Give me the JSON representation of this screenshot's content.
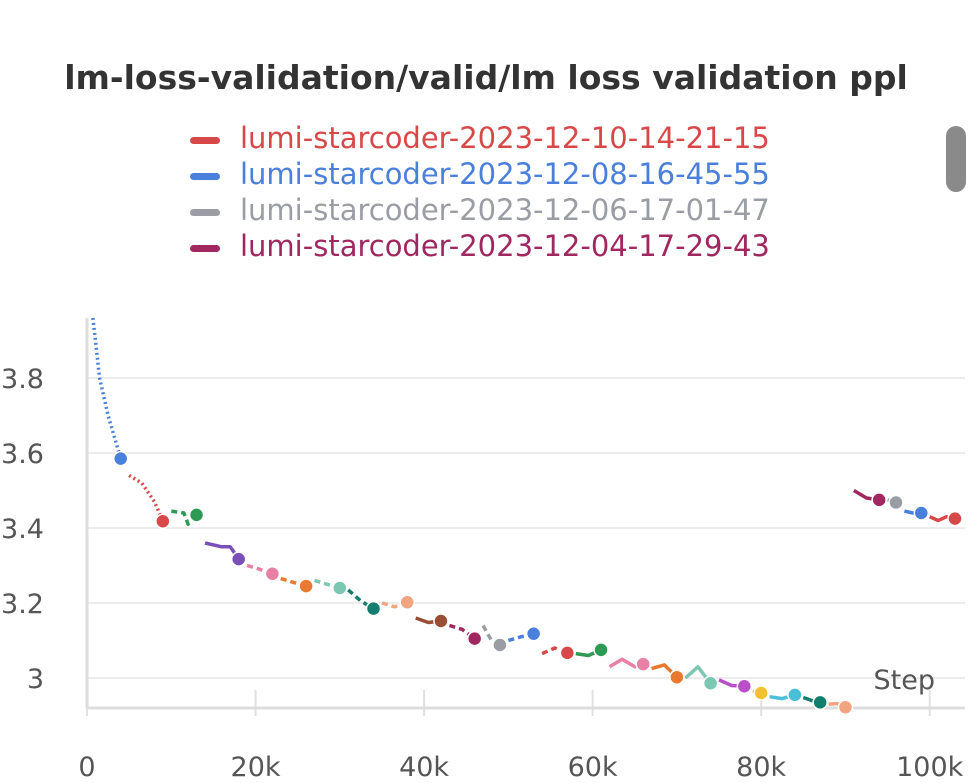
{
  "chart_data": {
    "type": "line",
    "title": "lm-loss-validation/valid/lm loss validation ppl",
    "xlabel": "Step",
    "ylabel": "",
    "xlim": [
      0,
      103000
    ],
    "ylim": [
      2.92,
      3.96
    ],
    "x_ticks": [
      {
        "value": 0,
        "label": "0"
      },
      {
        "value": 20000,
        "label": "20k"
      },
      {
        "value": 40000,
        "label": "40k"
      },
      {
        "value": 60000,
        "label": "60k"
      },
      {
        "value": 80000,
        "label": "80k"
      },
      {
        "value": 100000,
        "label": "100k"
      }
    ],
    "y_ticks": [
      {
        "value": 3.8,
        "label": "3.8"
      },
      {
        "value": 3.6,
        "label": "3.6"
      },
      {
        "value": 3.4,
        "label": "3.4"
      },
      {
        "value": 3.2,
        "label": "3.2"
      },
      {
        "value": 3.0,
        "label": "3"
      }
    ],
    "grid": true,
    "legend_position": "top",
    "legend": [
      {
        "name": "lumi-starcoder-2023-12-10-14-21-15",
        "color": "#d94848"
      },
      {
        "name": "lumi-starcoder-2023-12-08-16-45-55",
        "color": "#4a80dc"
      },
      {
        "name": "lumi-starcoder-2023-12-06-17-01-47",
        "color": "#9a9da3"
      },
      {
        "name": "lumi-starcoder-2023-12-04-17-29-43",
        "color": "#a0275f"
      }
    ],
    "series": [
      {
        "color": "#4a80dc",
        "dash": "2,3",
        "x": [
          700,
          1500,
          2500,
          4000
        ],
        "y": [
          3.96,
          3.8,
          3.7,
          3.585
        ]
      },
      {
        "color": "#d94848",
        "dash": "2,3",
        "x": [
          5000,
          6500,
          8000,
          9000
        ],
        "y": [
          3.54,
          3.52,
          3.47,
          3.42
        ]
      },
      {
        "color": "#2e9a55",
        "dash": "6,4",
        "x": [
          10000,
          11500,
          12000,
          13000
        ],
        "y": [
          3.445,
          3.44,
          3.41,
          3.435
        ]
      },
      {
        "color": "#7b4fb8",
        "dash": "",
        "x": [
          14000,
          16000,
          17000,
          18000
        ],
        "y": [
          3.36,
          3.35,
          3.35,
          3.317
        ]
      },
      {
        "color": "#e87fa4",
        "dash": "6,4",
        "x": [
          19000,
          20500,
          22000
        ],
        "y": [
          3.3,
          3.29,
          3.278
        ]
      },
      {
        "color": "#e8792e",
        "dash": "6,4",
        "x": [
          23000,
          24500,
          26000
        ],
        "y": [
          3.265,
          3.255,
          3.245
        ]
      },
      {
        "color": "#7cc7b2",
        "dash": "6,4",
        "x": [
          27000,
          28500,
          30000
        ],
        "y": [
          3.26,
          3.25,
          3.24
        ]
      },
      {
        "color": "#137e6d",
        "dash": "6,4",
        "x": [
          31000,
          32500,
          34000
        ],
        "y": [
          3.235,
          3.205,
          3.185
        ]
      },
      {
        "color": "#f2a47e",
        "dash": "6,4",
        "x": [
          35000,
          36500,
          38000
        ],
        "y": [
          3.2,
          3.19,
          3.202
        ]
      },
      {
        "color": "#9b4e36",
        "dash": "",
        "x": [
          39000,
          40500,
          42000
        ],
        "y": [
          3.16,
          3.148,
          3.152
        ]
      },
      {
        "color": "#a0275f",
        "dash": "6,4",
        "x": [
          43000,
          44500,
          46000
        ],
        "y": [
          3.14,
          3.13,
          3.105
        ]
      },
      {
        "color": "#9a9da3",
        "dash": "6,4",
        "x": [
          47000,
          48000,
          49000
        ],
        "y": [
          3.14,
          3.1,
          3.088
        ]
      },
      {
        "color": "#4a80dc",
        "dash": "6,4",
        "x": [
          50000,
          51500,
          53000
        ],
        "y": [
          3.1,
          3.11,
          3.118
        ]
      },
      {
        "color": "#d94848",
        "dash": "6,4",
        "x": [
          54000,
          55500,
          57000
        ],
        "y": [
          3.065,
          3.08,
          3.067
        ]
      },
      {
        "color": "#2e9a55",
        "dash": "",
        "x": [
          58000,
          59500,
          61000
        ],
        "y": [
          3.065,
          3.06,
          3.075
        ]
      },
      {
        "color": "#e87fa4",
        "dash": "",
        "x": [
          62000,
          63500,
          65000,
          66000
        ],
        "y": [
          3.03,
          3.05,
          3.03,
          3.037
        ]
      },
      {
        "color": "#e8792e",
        "dash": "",
        "x": [
          67000,
          68500,
          70000
        ],
        "y": [
          3.025,
          3.035,
          3.002
        ]
      },
      {
        "color": "#7cc7b2",
        "dash": "",
        "x": [
          71000,
          72500,
          73500,
          74000
        ],
        "y": [
          3.0,
          3.03,
          3.0,
          2.986
        ]
      },
      {
        "color": "#b94fc9",
        "dash": "",
        "x": [
          75000,
          76500,
          78000
        ],
        "y": [
          2.995,
          2.98,
          2.978
        ]
      },
      {
        "color": "#f2c12e",
        "dash": "",
        "x": [
          79000,
          80000
        ],
        "y": [
          2.965,
          2.96
        ]
      },
      {
        "color": "#4bbfd8",
        "dash": "",
        "x": [
          81000,
          82500,
          84000
        ],
        "y": [
          2.95,
          2.945,
          2.955
        ]
      },
      {
        "color": "#137e6d",
        "dash": "",
        "x": [
          85000,
          86000,
          87000
        ],
        "y": [
          2.948,
          2.94,
          2.935
        ]
      },
      {
        "color": "#f2a47e",
        "dash": "",
        "x": [
          88000,
          89000,
          90000
        ],
        "y": [
          2.93,
          2.932,
          2.922
        ]
      },
      {
        "color": "#a0275f",
        "dash": "",
        "x": [
          91000,
          92500,
          94000
        ],
        "y": [
          3.5,
          3.48,
          3.475
        ]
      },
      {
        "color": "#9a9da3",
        "dash": "",
        "x": [
          95000,
          96000
        ],
        "y": [
          3.475,
          3.468
        ]
      },
      {
        "color": "#4a80dc",
        "dash": "",
        "x": [
          97000,
          98000,
          99000
        ],
        "y": [
          3.445,
          3.44,
          3.44
        ]
      },
      {
        "color": "#d94848",
        "dash": "",
        "x": [
          100000,
          101000,
          102000,
          103000
        ],
        "y": [
          3.43,
          3.42,
          3.43,
          3.425
        ]
      }
    ],
    "points": [
      {
        "x": 4000,
        "y": 3.585,
        "color": "#4a80dc"
      },
      {
        "x": 9000,
        "y": 3.418,
        "color": "#d94848"
      },
      {
        "x": 13000,
        "y": 3.435,
        "color": "#2e9a55"
      },
      {
        "x": 18000,
        "y": 3.317,
        "color": "#7b4fb8"
      },
      {
        "x": 22000,
        "y": 3.278,
        "color": "#e87fa4"
      },
      {
        "x": 26000,
        "y": 3.245,
        "color": "#e8792e"
      },
      {
        "x": 30000,
        "y": 3.24,
        "color": "#7cc7b2"
      },
      {
        "x": 34000,
        "y": 3.185,
        "color": "#137e6d"
      },
      {
        "x": 38000,
        "y": 3.202,
        "color": "#f2a47e"
      },
      {
        "x": 42000,
        "y": 3.152,
        "color": "#9b4e36"
      },
      {
        "x": 46000,
        "y": 3.105,
        "color": "#a0275f"
      },
      {
        "x": 49000,
        "y": 3.088,
        "color": "#9a9da3"
      },
      {
        "x": 53000,
        "y": 3.118,
        "color": "#4a80dc"
      },
      {
        "x": 57000,
        "y": 3.067,
        "color": "#d94848"
      },
      {
        "x": 61000,
        "y": 3.075,
        "color": "#2e9a55"
      },
      {
        "x": 66000,
        "y": 3.037,
        "color": "#e87fa4"
      },
      {
        "x": 70000,
        "y": 3.002,
        "color": "#e8792e"
      },
      {
        "x": 74000,
        "y": 2.986,
        "color": "#7cc7b2"
      },
      {
        "x": 78000,
        "y": 2.978,
        "color": "#b94fc9"
      },
      {
        "x": 80000,
        "y": 2.96,
        "color": "#f2c12e"
      },
      {
        "x": 84000,
        "y": 2.955,
        "color": "#4bbfd8"
      },
      {
        "x": 87000,
        "y": 2.935,
        "color": "#137e6d"
      },
      {
        "x": 90000,
        "y": 2.922,
        "color": "#f2a47e"
      },
      {
        "x": 94000,
        "y": 3.475,
        "color": "#a0275f"
      },
      {
        "x": 96000,
        "y": 3.468,
        "color": "#9a9da3"
      },
      {
        "x": 99000,
        "y": 3.44,
        "color": "#4a80dc"
      },
      {
        "x": 103000,
        "y": 3.425,
        "color": "#d94848"
      }
    ]
  }
}
